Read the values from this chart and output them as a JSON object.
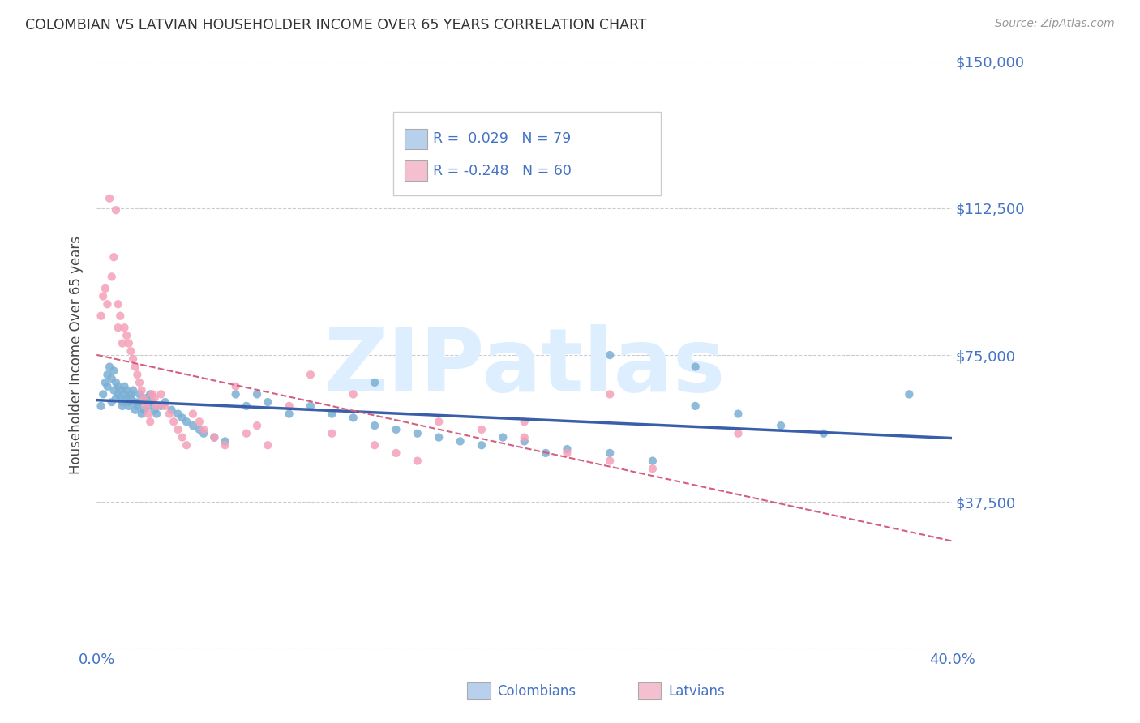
{
  "title": "COLOMBIAN VS LATVIAN HOUSEHOLDER INCOME OVER 65 YEARS CORRELATION CHART",
  "source": "Source: ZipAtlas.com",
  "ylabel": "Householder Income Over 65 years",
  "yticks": [
    0,
    37500,
    75000,
    112500,
    150000
  ],
  "ytick_labels": [
    "",
    "$37,500",
    "$75,000",
    "$112,500",
    "$150,000"
  ],
  "xlim": [
    0.0,
    0.4
  ],
  "ylim": [
    0,
    150000
  ],
  "colombian_R": 0.029,
  "colombian_N": 79,
  "latvian_R": -0.248,
  "latvian_N": 60,
  "dot_color_colombian": "#7bafd4",
  "dot_color_latvian": "#f4a0b8",
  "line_color_colombian": "#3a5faa",
  "line_color_latvian": "#d46080",
  "legend_box_color_colombian": "#b8d0ec",
  "legend_box_color_latvian": "#f4c0d0",
  "watermark": "ZIPatlas",
  "watermark_color": "#ddeeff",
  "background_color": "#ffffff",
  "grid_color": "#cccccc",
  "title_color": "#333333",
  "axis_label_color": "#4472c4",
  "legend_text_color": "#4472c4",
  "colombian_x": [
    0.002,
    0.003,
    0.004,
    0.005,
    0.005,
    0.006,
    0.007,
    0.007,
    0.008,
    0.008,
    0.009,
    0.009,
    0.01,
    0.01,
    0.011,
    0.011,
    0.012,
    0.012,
    0.013,
    0.013,
    0.014,
    0.014,
    0.015,
    0.015,
    0.016,
    0.016,
    0.017,
    0.018,
    0.018,
    0.019,
    0.02,
    0.02,
    0.021,
    0.022,
    0.023,
    0.024,
    0.025,
    0.026,
    0.027,
    0.028,
    0.03,
    0.032,
    0.035,
    0.038,
    0.04,
    0.042,
    0.045,
    0.048,
    0.05,
    0.055,
    0.06,
    0.065,
    0.07,
    0.075,
    0.08,
    0.09,
    0.1,
    0.11,
    0.12,
    0.13,
    0.14,
    0.15,
    0.16,
    0.17,
    0.18,
    0.19,
    0.2,
    0.21,
    0.22,
    0.24,
    0.26,
    0.28,
    0.3,
    0.32,
    0.34,
    0.24,
    0.13,
    0.28,
    0.38
  ],
  "colombian_y": [
    62000,
    65000,
    68000,
    70000,
    67000,
    72000,
    69000,
    63000,
    71000,
    66000,
    64000,
    68000,
    67000,
    65000,
    66000,
    64000,
    63000,
    62000,
    65000,
    67000,
    66000,
    64000,
    63000,
    62000,
    65000,
    64000,
    66000,
    63000,
    61000,
    62000,
    65000,
    63000,
    60000,
    61000,
    64000,
    62000,
    65000,
    63000,
    61000,
    60000,
    62000,
    63000,
    61000,
    60000,
    59000,
    58000,
    57000,
    56000,
    55000,
    54000,
    53000,
    65000,
    62000,
    65000,
    63000,
    60000,
    62000,
    60000,
    59000,
    57000,
    56000,
    55000,
    54000,
    53000,
    52000,
    54000,
    53000,
    50000,
    51000,
    50000,
    48000,
    62000,
    60000,
    57000,
    55000,
    75000,
    68000,
    72000,
    65000
  ],
  "latvian_x": [
    0.002,
    0.003,
    0.004,
    0.005,
    0.006,
    0.007,
    0.008,
    0.009,
    0.01,
    0.01,
    0.011,
    0.012,
    0.013,
    0.014,
    0.015,
    0.016,
    0.017,
    0.018,
    0.019,
    0.02,
    0.021,
    0.022,
    0.023,
    0.024,
    0.025,
    0.026,
    0.027,
    0.028,
    0.03,
    0.032,
    0.034,
    0.036,
    0.038,
    0.04,
    0.042,
    0.045,
    0.048,
    0.05,
    0.055,
    0.06,
    0.065,
    0.07,
    0.075,
    0.08,
    0.09,
    0.1,
    0.11,
    0.12,
    0.13,
    0.14,
    0.15,
    0.16,
    0.18,
    0.2,
    0.22,
    0.24,
    0.26,
    0.3,
    0.24,
    0.2
  ],
  "latvian_y": [
    85000,
    90000,
    92000,
    88000,
    115000,
    95000,
    100000,
    112000,
    88000,
    82000,
    85000,
    78000,
    82000,
    80000,
    78000,
    76000,
    74000,
    72000,
    70000,
    68000,
    66000,
    64000,
    62000,
    60000,
    58000,
    65000,
    64000,
    62000,
    65000,
    62000,
    60000,
    58000,
    56000,
    54000,
    52000,
    60000,
    58000,
    56000,
    54000,
    52000,
    67000,
    55000,
    57000,
    52000,
    62000,
    70000,
    55000,
    65000,
    52000,
    50000,
    48000,
    58000,
    56000,
    54000,
    50000,
    48000,
    46000,
    55000,
    65000,
    58000
  ]
}
